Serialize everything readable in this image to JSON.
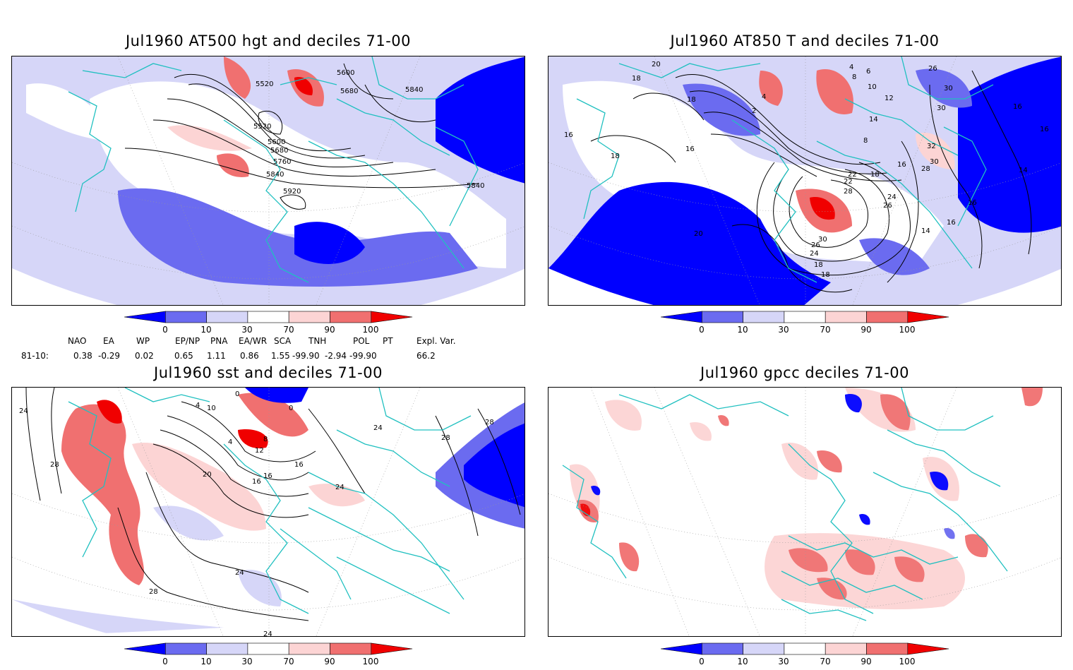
{
  "panels": [
    {
      "title": "Jul1960 AT500 hgt and deciles 71-00",
      "contour_labels": [
        "5520",
        "5600",
        "5680",
        "5840",
        "5520",
        "5600",
        "5680",
        "5760",
        "5840",
        "5920",
        "5840"
      ]
    },
    {
      "title": "Jul1960 AT850 T and deciles 71-00",
      "contour_labels": [
        "20",
        "18",
        "18",
        "16",
        "18",
        "16",
        "4",
        "2",
        "4",
        "8",
        "10",
        "12",
        "14",
        "6",
        "8",
        "26",
        "30",
        "30",
        "16",
        "16",
        "14",
        "32",
        "30",
        "28",
        "22",
        "22",
        "18",
        "16",
        "24",
        "26",
        "28",
        "30",
        "26",
        "24",
        "20",
        "18",
        "14",
        "16",
        "18",
        "16"
      ]
    },
    {
      "title": "Jul1960 sst and deciles 71-00",
      "contour_labels": [
        "24",
        "28",
        "0",
        "4",
        "10",
        "0",
        "4",
        "8",
        "12",
        "16",
        "16",
        "20",
        "16",
        "24",
        "24",
        "28",
        "28",
        "24",
        "28",
        "24"
      ]
    },
    {
      "title": "Jul1960 gpcc deciles 71-00",
      "contour_labels": []
    }
  ],
  "colorbar": {
    "ticks": [
      "0",
      "10",
      "30",
      "70",
      "90",
      "100"
    ],
    "colors": [
      "#0000ff",
      "#6b6bf0",
      "#d6d6f8",
      "#ffffff",
      "#fcd4d4",
      "#f07070",
      "#f00000"
    ]
  },
  "teleconnections": {
    "headers": [
      "NAO",
      "EA",
      "WP",
      "EP/NP",
      "PNA",
      "EA/WR",
      "SCA",
      "TNH",
      "POL",
      "PT",
      "Expl. Var."
    ],
    "row_label": "81-10:",
    "values": [
      "0.38",
      "-0.29",
      "0.02",
      "0.65",
      "1.11",
      "0.86",
      "1.55",
      "-99.90",
      "-2.94",
      "-99.90",
      "66.2"
    ]
  },
  "colors": {
    "coast": "#20c0c0",
    "strong_blue": "#0000ff",
    "mid_blue": "#6b6bf0",
    "light_blue": "#d6d6f8",
    "light_red": "#fcd4d4",
    "mid_red": "#f07070",
    "strong_red": "#f00000"
  }
}
